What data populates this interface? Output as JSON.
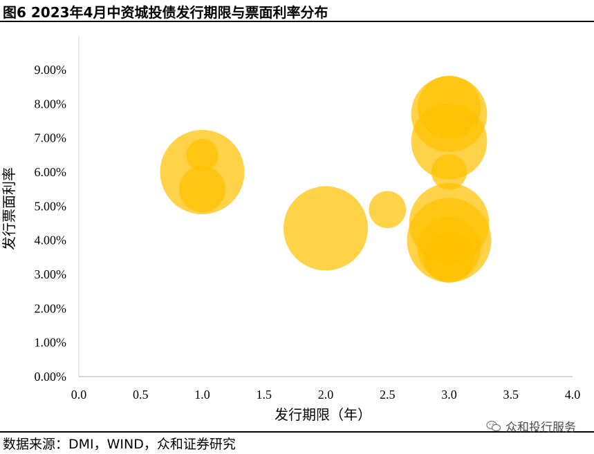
{
  "header": {
    "title": "图6 2023年4月中资城投债发行期限与票面利率分布"
  },
  "footer": {
    "source": "数据来源：DMI，WIND，众和证券研究",
    "watermark": "众和投行服务"
  },
  "chart_data": {
    "type": "scatter",
    "xlabel": "发行期限（年）",
    "ylabel": "发行票面利率",
    "xlim": [
      0,
      4
    ],
    "ylim": [
      0,
      0.09
    ],
    "x_ticks": [
      "0.0",
      "0.5",
      "1.0",
      "1.5",
      "2.0",
      "2.5",
      "3.0",
      "3.5",
      "4.0"
    ],
    "y_ticks": [
      "0.00%",
      "1.00%",
      "2.00%",
      "3.00%",
      "4.00%",
      "5.00%",
      "6.00%",
      "7.00%",
      "8.00%",
      "9.00%"
    ],
    "grid": false,
    "bubble_color": "#FFC000",
    "points": [
      {
        "x": 1.0,
        "y": 0.06,
        "size": 1.0
      },
      {
        "x": 1.0,
        "y": 0.065,
        "size": 0.38
      },
      {
        "x": 1.0,
        "y": 0.055,
        "size": 0.55
      },
      {
        "x": 2.0,
        "y": 0.0435,
        "size": 1.0
      },
      {
        "x": 2.5,
        "y": 0.049,
        "size": 0.44
      },
      {
        "x": 3.0,
        "y": 0.077,
        "size": 0.9
      },
      {
        "x": 3.0,
        "y": 0.079,
        "size": 0.75
      },
      {
        "x": 3.0,
        "y": 0.069,
        "size": 0.9
      },
      {
        "x": 3.0,
        "y": 0.06,
        "size": 0.42
      },
      {
        "x": 3.0,
        "y": 0.045,
        "size": 0.95
      },
      {
        "x": 3.0,
        "y": 0.04,
        "size": 1.0
      },
      {
        "x": 3.0,
        "y": 0.0375,
        "size": 0.75
      },
      {
        "x": 3.0,
        "y": 0.035,
        "size": 0.6
      }
    ]
  }
}
